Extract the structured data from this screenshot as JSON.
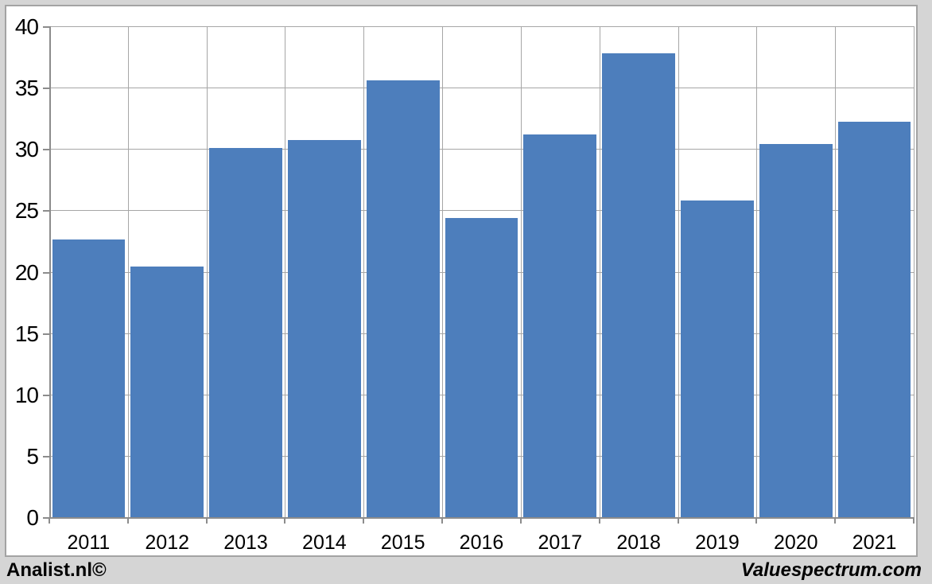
{
  "footer": {
    "left": "Analist.nl©",
    "right": "Valuespectrum.com"
  },
  "chart_data": {
    "type": "bar",
    "title": "",
    "xlabel": "",
    "ylabel": "",
    "categories": [
      "2011",
      "2012",
      "2013",
      "2014",
      "2015",
      "2016",
      "2017",
      "2018",
      "2019",
      "2020",
      "2021"
    ],
    "values": [
      22.6,
      20.4,
      30.1,
      30.7,
      35.6,
      24.4,
      31.2,
      37.8,
      25.8,
      30.4,
      32.2
    ],
    "ylim": [
      0,
      40
    ],
    "yticks": [
      0,
      5,
      10,
      15,
      20,
      25,
      30,
      35,
      40
    ],
    "grid": true,
    "legend": "none",
    "bar_color": "#4d7ebc",
    "gridline_color": "#a6a6a6",
    "axis_color": "#8c8c8c",
    "label_color": "#000000"
  }
}
